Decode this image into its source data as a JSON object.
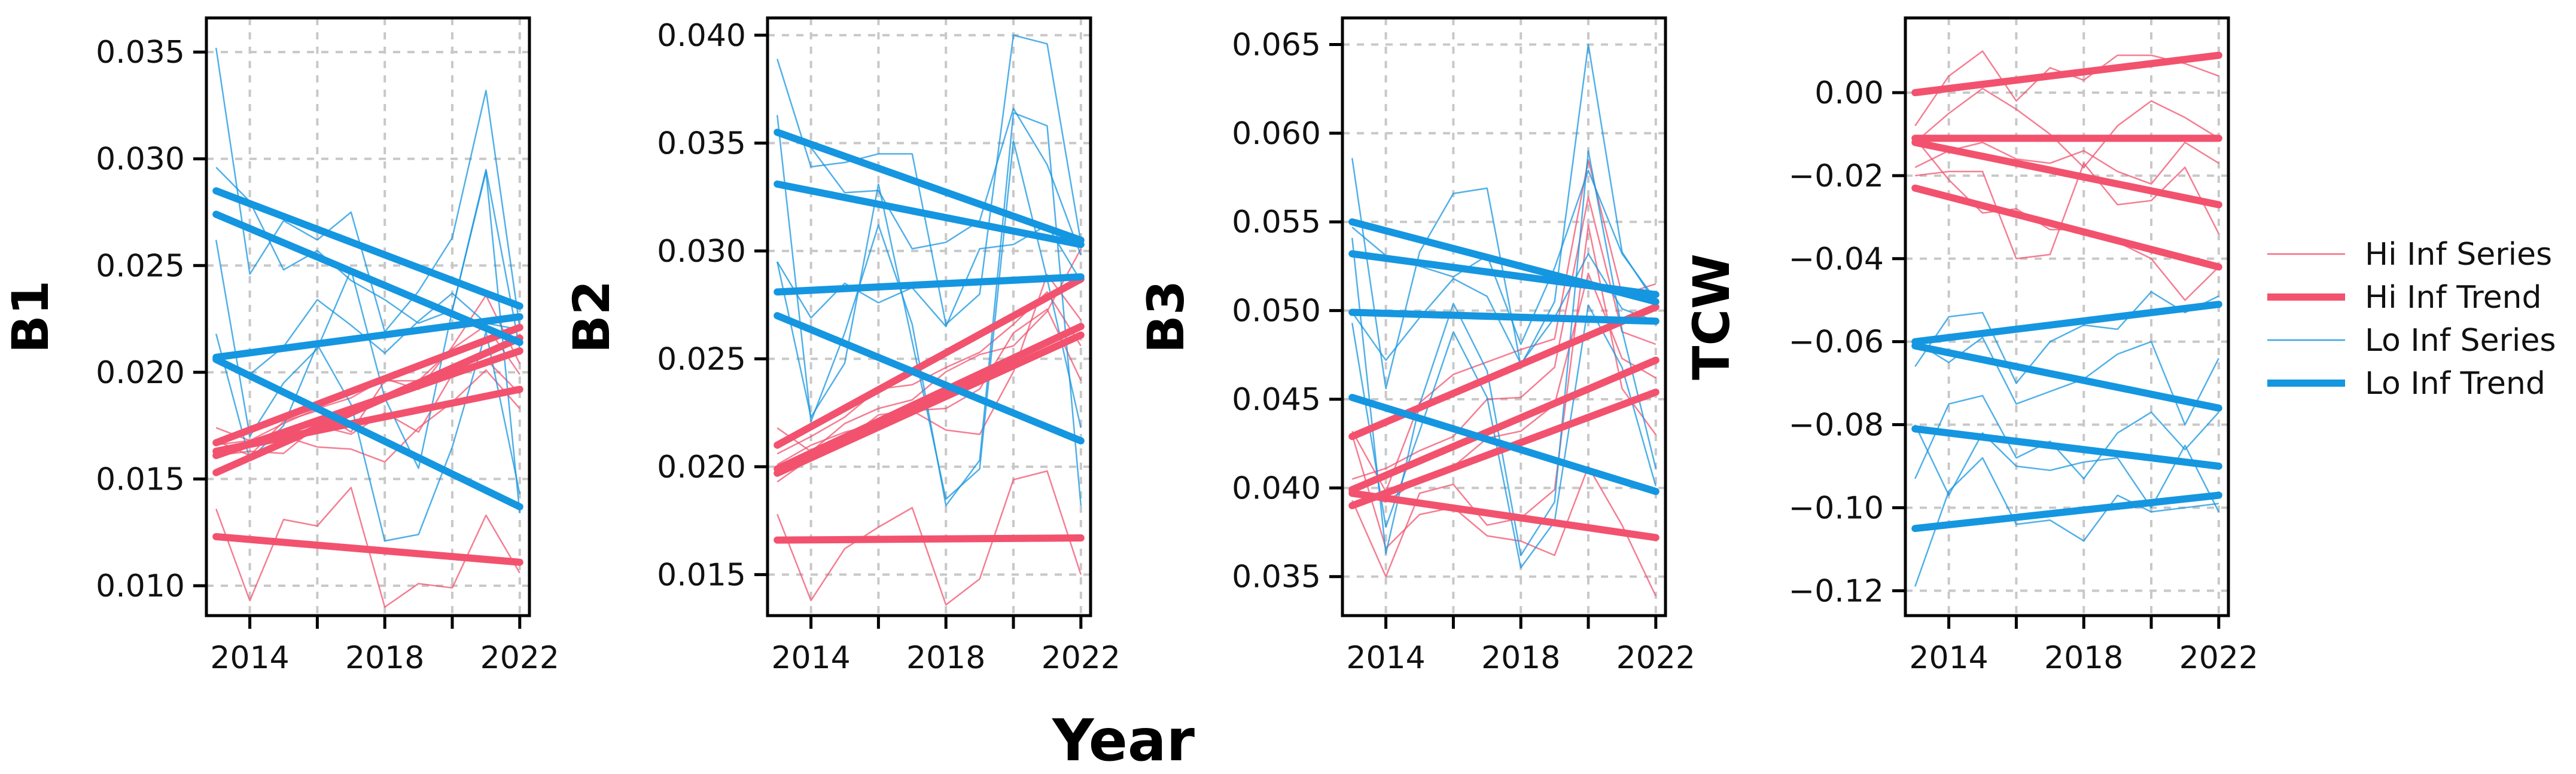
{
  "colors": {
    "hi": "#f2526e",
    "lo": "#1596e0",
    "grid": "#c8c8c8"
  },
  "x_label": "Year",
  "legend": [
    {
      "name": "Hi Inf Series",
      "group": "hi",
      "kind": "series"
    },
    {
      "name": "Hi Inf Trend",
      "group": "hi",
      "kind": "trend"
    },
    {
      "name": "Lo Inf Series",
      "group": "lo",
      "kind": "series"
    },
    {
      "name": "Lo Inf Trend",
      "group": "lo",
      "kind": "trend"
    }
  ],
  "chart_data": [
    {
      "type": "line",
      "ylabel": "B1",
      "xlim": [
        2013,
        2022
      ],
      "ylim": [
        0.0086,
        0.0366
      ],
      "x_ticks": [
        2014,
        2018,
        2022
      ],
      "x_minor_ticks": [
        2016,
        2020
      ],
      "y_ticks": [
        "0.010",
        "0.015",
        "0.020",
        "0.025",
        "0.030",
        "0.035"
      ],
      "x": [
        2013,
        2014,
        2015,
        2016,
        2017,
        2018,
        2019,
        2020,
        2021,
        2022
      ],
      "series": [
        {
          "group": "hi",
          "values": [
            0.0174,
            0.0168,
            0.0176,
            0.0183,
            0.0188,
            0.0197,
            0.0192,
            0.0212,
            0.0236,
            0.0204
          ]
        },
        {
          "group": "hi",
          "values": [
            0.0168,
            0.0161,
            0.0177,
            0.0182,
            0.0172,
            0.0196,
            0.0196,
            0.0211,
            0.0222,
            0.0199
          ]
        },
        {
          "group": "hi",
          "values": [
            0.0161,
            0.0163,
            0.0162,
            0.0175,
            0.0171,
            0.0181,
            0.0172,
            0.0199,
            0.0206,
            0.019
          ]
        },
        {
          "group": "hi",
          "values": [
            0.0166,
            0.0168,
            0.017,
            0.0165,
            0.0164,
            0.0158,
            0.0174,
            0.0186,
            0.0201,
            0.0183
          ]
        },
        {
          "group": "hi",
          "values": [
            0.0136,
            0.0093,
            0.0131,
            0.0128,
            0.0146,
            0.009,
            0.0101,
            0.0099,
            0.0133,
            0.0106
          ]
        },
        {
          "group": "lo",
          "values": [
            0.0352,
            0.0246,
            0.0271,
            0.0262,
            0.0275,
            0.0219,
            0.0238,
            0.0263,
            0.0332,
            0.0221
          ]
        },
        {
          "group": "lo",
          "values": [
            0.0296,
            0.028,
            0.0248,
            0.0257,
            0.0243,
            0.0234,
            0.0223,
            0.0229,
            0.0295,
            0.0211
          ]
        },
        {
          "group": "lo",
          "values": [
            0.0205,
            0.0199,
            0.0212,
            0.0234,
            0.0222,
            0.0209,
            0.0224,
            0.0237,
            0.0223,
            0.022
          ]
        },
        {
          "group": "lo",
          "values": [
            0.0262,
            0.017,
            0.0195,
            0.0211,
            0.0248,
            0.0188,
            0.0155,
            0.0229,
            0.0294,
            0.0134
          ]
        },
        {
          "group": "lo",
          "values": [
            0.0218,
            0.0159,
            0.0175,
            0.0213,
            0.0185,
            0.0121,
            0.0124,
            0.0165,
            0.0219,
            0.0143
          ]
        }
      ],
      "trends": [
        {
          "group": "hi",
          "start": 0.0167,
          "end": 0.0221
        },
        {
          "group": "hi",
          "start": 0.0161,
          "end": 0.021
        },
        {
          "group": "hi",
          "start": 0.0153,
          "end": 0.0216
        },
        {
          "group": "hi",
          "start": 0.0163,
          "end": 0.0192
        },
        {
          "group": "hi",
          "start": 0.0123,
          "end": 0.0111
        },
        {
          "group": "lo",
          "start": 0.0285,
          "end": 0.0231
        },
        {
          "group": "lo",
          "start": 0.0274,
          "end": 0.0214
        },
        {
          "group": "lo",
          "start": 0.0207,
          "end": 0.0226
        },
        {
          "group": "lo",
          "start": 0.0206,
          "end": 0.0137
        }
      ]
    },
    {
      "type": "line",
      "ylabel": "B2",
      "xlim": [
        2013,
        2022
      ],
      "ylim": [
        0.0131,
        0.0408
      ],
      "x_ticks": [
        2014,
        2018,
        2022
      ],
      "x_minor_ticks": [
        2016,
        2020
      ],
      "y_ticks": [
        "0.015",
        "0.020",
        "0.025",
        "0.030",
        "0.035",
        "0.040"
      ],
      "x": [
        2013,
        2014,
        2015,
        2016,
        2017,
        2018,
        2019,
        2020,
        2021,
        2022
      ],
      "series": [
        {
          "group": "hi",
          "values": [
            0.0218,
            0.0207,
            0.022,
            0.0227,
            0.0231,
            0.0244,
            0.0252,
            0.0256,
            0.0272,
            0.0301
          ]
        },
        {
          "group": "hi",
          "values": [
            0.0206,
            0.0214,
            0.0223,
            0.0236,
            0.0238,
            0.0246,
            0.0253,
            0.0266,
            0.0281,
            0.0256
          ]
        },
        {
          "group": "hi",
          "values": [
            0.0201,
            0.021,
            0.0216,
            0.022,
            0.0226,
            0.0227,
            0.0236,
            0.0262,
            0.0273,
            0.024
          ]
        },
        {
          "group": "hi",
          "values": [
            0.0193,
            0.0204,
            0.0212,
            0.0224,
            0.0226,
            0.0217,
            0.0215,
            0.0244,
            0.0289,
            0.0268
          ]
        },
        {
          "group": "hi",
          "values": [
            0.0178,
            0.0138,
            0.0162,
            0.0172,
            0.0181,
            0.0136,
            0.0148,
            0.0194,
            0.0198,
            0.015
          ]
        },
        {
          "group": "lo",
          "values": [
            0.0389,
            0.0339,
            0.0341,
            0.0345,
            0.0345,
            0.0266,
            0.028,
            0.04,
            0.0396,
            0.0304
          ]
        },
        {
          "group": "lo",
          "values": [
            0.0355,
            0.0348,
            0.0327,
            0.0328,
            0.0301,
            0.0304,
            0.0314,
            0.0366,
            0.034,
            0.0298
          ]
        },
        {
          "group": "lo",
          "values": [
            0.0295,
            0.0269,
            0.0285,
            0.0276,
            0.0283,
            0.0265,
            0.0301,
            0.0303,
            0.0312,
            0.0286
          ]
        },
        {
          "group": "lo",
          "values": [
            0.0363,
            0.0221,
            0.0262,
            0.0312,
            0.0266,
            0.0182,
            0.0203,
            0.0364,
            0.0358,
            0.0182
          ]
        },
        {
          "group": "lo",
          "values": [
            0.0295,
            0.0223,
            0.0248,
            0.0331,
            0.0258,
            0.0185,
            0.0199,
            0.0351,
            0.0287,
            0.0218
          ]
        }
      ],
      "trends": [
        {
          "group": "hi",
          "start": 0.021,
          "end": 0.0287
        },
        {
          "group": "hi",
          "start": 0.0199,
          "end": 0.0265
        },
        {
          "group": "hi",
          "start": 0.0197,
          "end": 0.0261
        },
        {
          "group": "hi",
          "start": 0.0166,
          "end": 0.0167
        },
        {
          "group": "lo",
          "start": 0.0355,
          "end": 0.0305
        },
        {
          "group": "lo",
          "start": 0.0331,
          "end": 0.0303
        },
        {
          "group": "lo",
          "start": 0.0281,
          "end": 0.0288
        },
        {
          "group": "lo",
          "start": 0.027,
          "end": 0.0212
        }
      ]
    },
    {
      "type": "line",
      "ylabel": "B3",
      "xlim": [
        2013,
        2022
      ],
      "ylim": [
        0.0328,
        0.0665
      ],
      "x_ticks": [
        2014,
        2018,
        2022
      ],
      "x_minor_ticks": [
        2016,
        2020
      ],
      "y_ticks": [
        "0.035",
        "0.040",
        "0.045",
        "0.050",
        "0.055",
        "0.060",
        "0.065"
      ],
      "x": [
        2013,
        2014,
        2015,
        2016,
        2017,
        2018,
        2019,
        2020,
        2021,
        2022
      ],
      "series": [
        {
          "group": "hi",
          "values": [
            0.0432,
            0.0398,
            0.0448,
            0.0464,
            0.0471,
            0.0478,
            0.0484,
            0.0585,
            0.0509,
            0.0515
          ]
        },
        {
          "group": "hi",
          "values": [
            0.0405,
            0.0411,
            0.0421,
            0.0429,
            0.045,
            0.0451,
            0.0468,
            0.0564,
            0.0488,
            0.0481
          ]
        },
        {
          "group": "hi",
          "values": [
            0.0398,
            0.0392,
            0.0405,
            0.0412,
            0.0428,
            0.0432,
            0.0447,
            0.0521,
            0.0473,
            0.0462
          ]
        },
        {
          "group": "hi",
          "values": [
            0.0393,
            0.035,
            0.0397,
            0.0402,
            0.0379,
            0.0383,
            0.0399,
            0.0548,
            0.0456,
            0.043
          ]
        },
        {
          "group": "hi",
          "values": [
            0.043,
            0.0366,
            0.0385,
            0.0389,
            0.0373,
            0.037,
            0.0362,
            0.0412,
            0.0379,
            0.0339
          ]
        },
        {
          "group": "lo",
          "values": [
            0.0586,
            0.0456,
            0.0533,
            0.0566,
            0.0569,
            0.0469,
            0.0505,
            0.065,
            0.0533,
            0.0504
          ]
        },
        {
          "group": "lo",
          "values": [
            0.0547,
            0.0531,
            0.0525,
            0.0519,
            0.0531,
            0.0481,
            0.0524,
            0.0579,
            0.0532,
            0.0506
          ]
        },
        {
          "group": "lo",
          "values": [
            0.0499,
            0.0472,
            0.0496,
            0.0518,
            0.0508,
            0.047,
            0.0496,
            0.0532,
            0.0501,
            0.0494
          ]
        },
        {
          "group": "lo",
          "values": [
            0.0493,
            0.0378,
            0.0432,
            0.0488,
            0.0451,
            0.0355,
            0.0381,
            0.0503,
            0.0468,
            0.0401
          ]
        },
        {
          "group": "lo",
          "values": [
            0.0541,
            0.0363,
            0.0447,
            0.0504,
            0.0466,
            0.0362,
            0.0392,
            0.059,
            0.0489,
            0.0411
          ]
        }
      ],
      "trends": [
        {
          "group": "hi",
          "start": 0.0429,
          "end": 0.0502
        },
        {
          "group": "hi",
          "start": 0.0399,
          "end": 0.0472
        },
        {
          "group": "hi",
          "start": 0.039,
          "end": 0.0454
        },
        {
          "group": "hi",
          "start": 0.0397,
          "end": 0.0372
        },
        {
          "group": "lo",
          "start": 0.055,
          "end": 0.0505
        },
        {
          "group": "lo",
          "start": 0.0532,
          "end": 0.0509
        },
        {
          "group": "lo",
          "start": 0.0499,
          "end": 0.0494
        },
        {
          "group": "lo",
          "start": 0.0451,
          "end": 0.0398
        }
      ]
    },
    {
      "type": "line",
      "ylabel": "TCW",
      "xlim": [
        2013,
        2022
      ],
      "ylim": [
        -0.126,
        0.018
      ],
      "x_ticks": [
        2014,
        2018,
        2022
      ],
      "x_minor_ticks": [
        2016,
        2020
      ],
      "y_ticks": [
        "0.00",
        "−0.02",
        "−0.04",
        "−0.06",
        "−0.08",
        "−0.10",
        "−0.12"
      ],
      "x": [
        2013,
        2014,
        2015,
        2016,
        2017,
        2018,
        2019,
        2020,
        2021,
        2022
      ],
      "series": [
        {
          "group": "hi",
          "values": [
            -0.008,
            0.004,
            0.01,
            -0.002,
            0.006,
            0.003,
            0.009,
            0.009,
            0.007,
            0.004
          ]
        },
        {
          "group": "hi",
          "values": [
            -0.012,
            -0.005,
            0.001,
            -0.004,
            -0.01,
            -0.018,
            -0.008,
            -0.002,
            -0.006,
            -0.011
          ]
        },
        {
          "group": "hi",
          "values": [
            -0.018,
            -0.014,
            -0.012,
            -0.016,
            -0.017,
            -0.014,
            -0.019,
            -0.022,
            -0.012,
            -0.017
          ]
        },
        {
          "group": "hi",
          "values": [
            -0.02,
            -0.019,
            -0.019,
            -0.04,
            -0.039,
            -0.017,
            -0.027,
            -0.026,
            -0.018,
            -0.034
          ]
        },
        {
          "group": "hi",
          "values": [
            -0.011,
            -0.021,
            -0.029,
            -0.028,
            -0.033,
            -0.033,
            -0.036,
            -0.04,
            -0.05,
            -0.042
          ]
        },
        {
          "group": "lo",
          "values": [
            -0.066,
            -0.054,
            -0.053,
            -0.07,
            -0.06,
            -0.056,
            -0.057,
            -0.048,
            -0.053,
            -0.049
          ]
        },
        {
          "group": "lo",
          "values": [
            -0.06,
            -0.065,
            -0.059,
            -0.075,
            -0.072,
            -0.069,
            -0.063,
            -0.06,
            -0.08,
            -0.064
          ]
        },
        {
          "group": "lo",
          "values": [
            -0.093,
            -0.075,
            -0.073,
            -0.088,
            -0.084,
            -0.093,
            -0.082,
            -0.077,
            -0.086,
            -0.077
          ]
        },
        {
          "group": "lo",
          "values": [
            -0.08,
            -0.097,
            -0.082,
            -0.09,
            -0.091,
            -0.089,
            -0.088,
            -0.1,
            -0.085,
            -0.101
          ]
        },
        {
          "group": "lo",
          "values": [
            -0.119,
            -0.096,
            -0.088,
            -0.104,
            -0.103,
            -0.108,
            -0.097,
            -0.101,
            -0.1,
            -0.099
          ]
        }
      ],
      "trends": [
        {
          "group": "hi",
          "start": 0.0,
          "end": 0.009
        },
        {
          "group": "hi",
          "start": -0.011,
          "end": -0.011
        },
        {
          "group": "hi",
          "start": -0.012,
          "end": -0.027
        },
        {
          "group": "hi",
          "start": -0.023,
          "end": -0.042
        },
        {
          "group": "lo",
          "start": -0.06,
          "end": -0.051
        },
        {
          "group": "lo",
          "start": -0.061,
          "end": -0.076
        },
        {
          "group": "lo",
          "start": -0.081,
          "end": -0.09
        },
        {
          "group": "lo",
          "start": -0.105,
          "end": -0.097
        }
      ]
    }
  ]
}
